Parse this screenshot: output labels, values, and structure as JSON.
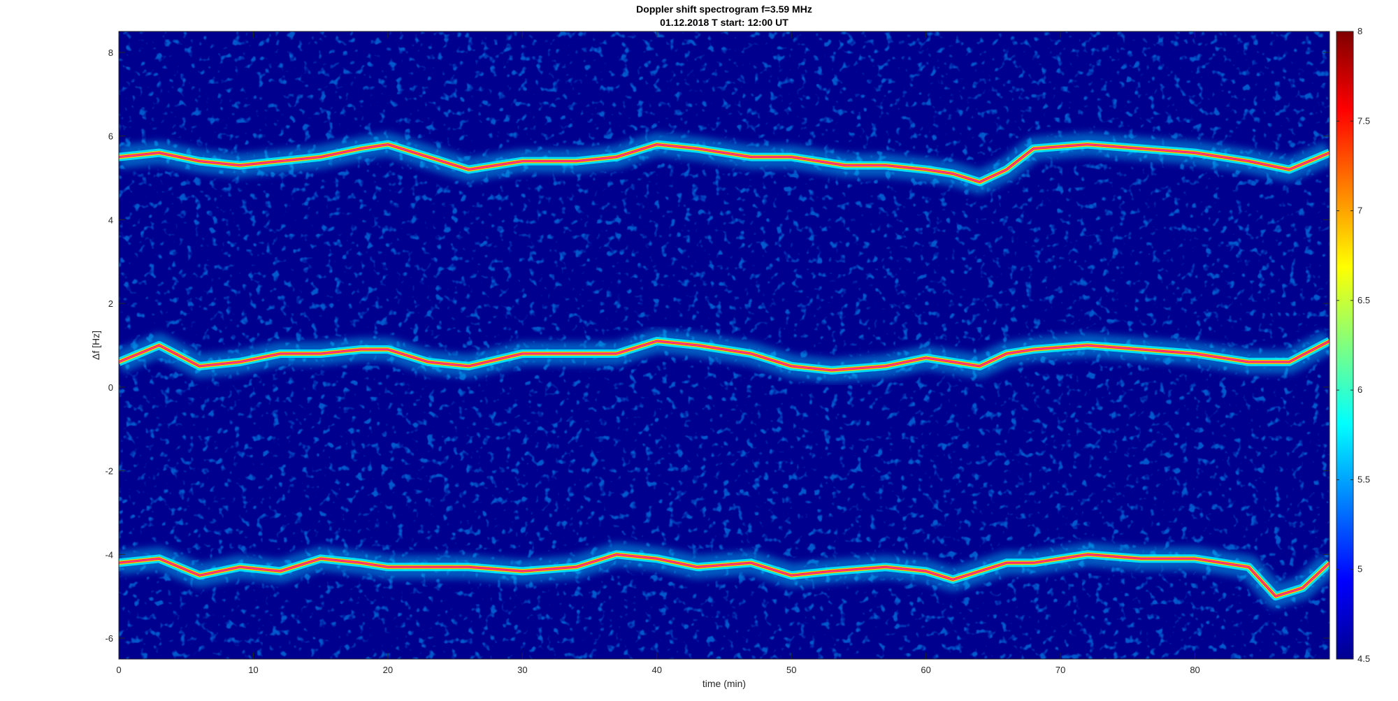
{
  "chart_data": {
    "type": "heatmap",
    "title": "Doppler shift spectrogram f=3.59 MHz",
    "subtitle": "01.12.2018   T start: 12:00 UT",
    "xlabel": "time (min)",
    "ylabel": "Δf [Hz]",
    "xlim": [
      0,
      90
    ],
    "ylim": [
      -6.5,
      8.5
    ],
    "xticks": [
      0,
      10,
      20,
      30,
      40,
      50,
      60,
      70,
      80
    ],
    "yticks": [
      -6,
      -4,
      -2,
      0,
      2,
      4,
      6,
      8
    ],
    "colorbar": {
      "range": [
        4.5,
        8
      ],
      "ticks": [
        4.5,
        5,
        5.5,
        6,
        6.5,
        7,
        7.5,
        8
      ],
      "colormap": "jet"
    },
    "background_color": "#00008f",
    "trace_color": "#ff40c0",
    "series": [
      {
        "x": [
          0,
          3,
          6,
          9,
          12,
          15,
          18,
          20,
          23,
          26,
          30,
          34,
          37,
          40,
          43,
          47,
          50,
          54,
          57,
          60,
          62,
          64,
          66,
          68,
          72,
          76,
          80,
          84,
          87,
          90
        ],
        "y": [
          5.5,
          5.6,
          5.4,
          5.3,
          5.4,
          5.5,
          5.7,
          5.8,
          5.5,
          5.2,
          5.4,
          5.4,
          5.5,
          5.8,
          5.7,
          5.5,
          5.5,
          5.3,
          5.3,
          5.2,
          5.1,
          4.9,
          5.2,
          5.7,
          5.8,
          5.7,
          5.6,
          5.4,
          5.2,
          5.6
        ]
      },
      {
        "x": [
          0,
          3,
          6,
          9,
          12,
          15,
          18,
          20,
          23,
          26,
          30,
          34,
          37,
          40,
          43,
          47,
          50,
          53,
          57,
          60,
          62,
          64,
          66,
          68,
          72,
          76,
          80,
          84,
          87,
          90
        ],
        "y": [
          0.6,
          1.0,
          0.5,
          0.6,
          0.8,
          0.8,
          0.9,
          0.9,
          0.6,
          0.5,
          0.8,
          0.8,
          0.8,
          1.1,
          1.0,
          0.8,
          0.5,
          0.4,
          0.5,
          0.7,
          0.6,
          0.5,
          0.8,
          0.9,
          1.0,
          0.9,
          0.8,
          0.6,
          0.6,
          1.1
        ]
      },
      {
        "x": [
          0,
          3,
          6,
          9,
          12,
          15,
          18,
          20,
          23,
          26,
          30,
          34,
          37,
          40,
          43,
          47,
          50,
          53,
          57,
          60,
          62,
          64,
          66,
          68,
          72,
          76,
          80,
          84,
          86,
          88,
          90
        ],
        "y": [
          -4.2,
          -4.1,
          -4.5,
          -4.3,
          -4.4,
          -4.1,
          -4.2,
          -4.3,
          -4.3,
          -4.3,
          -4.4,
          -4.3,
          -4.0,
          -4.1,
          -4.3,
          -4.2,
          -4.5,
          -4.4,
          -4.3,
          -4.4,
          -4.6,
          -4.4,
          -4.2,
          -4.2,
          -4.0,
          -4.1,
          -4.1,
          -4.3,
          -5.0,
          -4.8,
          -4.2
        ]
      }
    ]
  }
}
